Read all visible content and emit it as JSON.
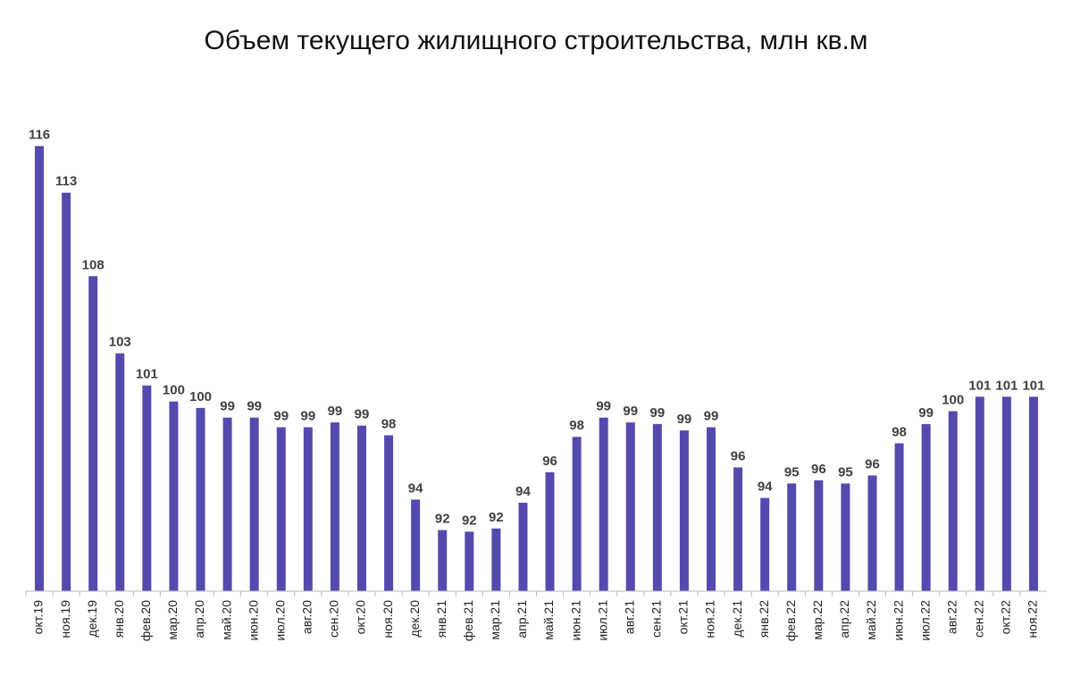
{
  "chart_data": {
    "type": "bar",
    "title": "Объем текущего жилищного строительства, млн кв.м",
    "categories": [
      "окт.19",
      "ноя.19",
      "дек.19",
      "янв.20",
      "фев.20",
      "мар.20",
      "апр.20",
      "май.20",
      "июн.20",
      "июл.20",
      "авг.20",
      "сен.20",
      "окт.20",
      "ноя.20",
      "дек.20",
      "янв.21",
      "фев.21",
      "мар.21",
      "апр.21",
      "май.21",
      "июн.21",
      "июл.21",
      "авг.21",
      "сен.21",
      "окт.21",
      "ноя.21",
      "дек.21",
      "янв.22",
      "фев.22",
      "мар.22",
      "апр.22",
      "май.22",
      "июн.22",
      "июл.22",
      "авг.22",
      "сен.22",
      "окт.22",
      "ноя.22"
    ],
    "values": [
      116.3,
      113.4,
      108.2,
      103.4,
      101.4,
      100.4,
      100.0,
      99.4,
      99.4,
      98.8,
      98.8,
      99.1,
      98.9,
      98.3,
      94.3,
      92.4,
      92.3,
      92.5,
      94.1,
      96.0,
      98.2,
      99.4,
      99.1,
      99.0,
      98.6,
      98.8,
      96.3,
      94.4,
      95.3,
      95.5,
      95.3,
      95.8,
      97.8,
      99.0,
      99.8,
      100.7,
      100.7,
      100.7
    ],
    "value_labels": [
      "116",
      "113",
      "108",
      "103",
      "101",
      "100",
      "100",
      "99",
      "99",
      "99",
      "99",
      "99",
      "99",
      "98",
      "94",
      "92",
      "92",
      "92",
      "94",
      "96",
      "98",
      "99",
      "99",
      "99",
      "99",
      "99",
      "96",
      "94",
      "95",
      "96",
      "95",
      "96",
      "98",
      "99",
      "100",
      "101",
      "101",
      "101"
    ],
    "color": "#544aae",
    "ylim": [
      88.6,
      118
    ]
  }
}
